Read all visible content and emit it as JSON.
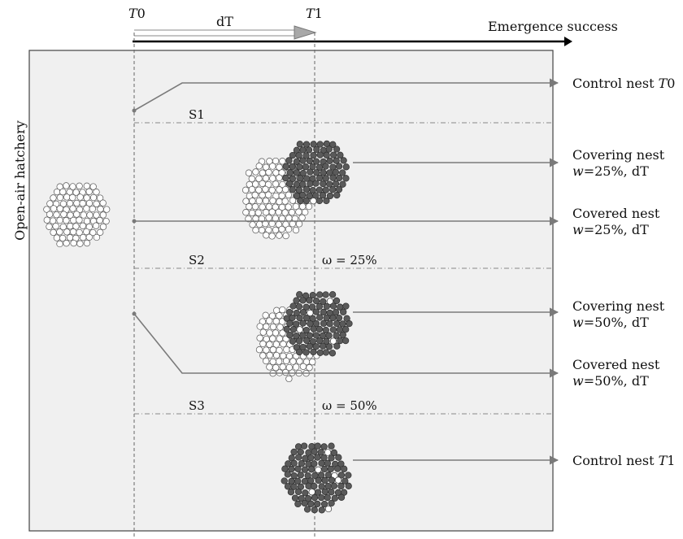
{
  "header": {
    "t0_italic": "T",
    "t0_suffix": "0",
    "dt": "dT",
    "t1_italic": "T",
    "t1_suffix": "1",
    "emergence": "Emergence success"
  },
  "side_label": "Open-air hatchery",
  "sections": {
    "s1": "S1",
    "s2": "S2",
    "s3": "S3",
    "omega25": "ω = 25%",
    "omega50": "ω = 50%"
  },
  "labels": {
    "control_t0": {
      "prefix": "Control nest ",
      "italic": "T",
      "suffix": "0"
    },
    "covering25": {
      "line1": "Covering nest",
      "w": "w",
      "value": "=25%, dT"
    },
    "covered25": {
      "line1": "Covered nest",
      "w": "w",
      "value": "=25%, dT"
    },
    "covering50": {
      "line1": "Covering nest",
      "w": "w",
      "value": "=50%, dT"
    },
    "covered50": {
      "line1": "Covered nest",
      "w": "w",
      "value": "=50%, dT"
    },
    "control_t1": {
      "prefix": "Control nest ",
      "italic": "T",
      "suffix": "1"
    }
  },
  "colors": {
    "panel": "#f0f0f0",
    "egg_dark": "#5a5a5a",
    "egg_light": "#ffffff",
    "line": "#7a7a7a"
  }
}
